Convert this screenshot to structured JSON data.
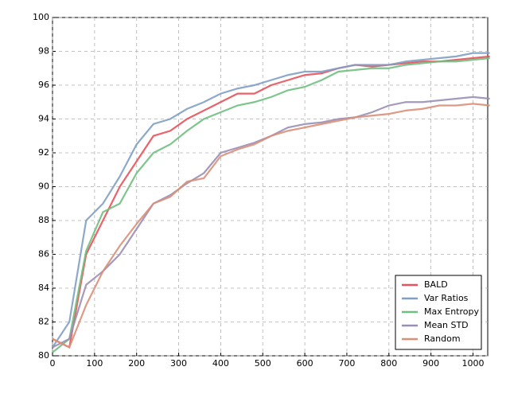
{
  "chart_data": {
    "type": "line",
    "x": [
      0,
      40,
      80,
      120,
      160,
      200,
      240,
      280,
      320,
      360,
      400,
      440,
      480,
      520,
      560,
      600,
      640,
      680,
      720,
      760,
      800,
      840,
      880,
      920,
      960,
      1000,
      1040
    ],
    "series": [
      {
        "name": "BALD",
        "color": "#e8525a",
        "values": [
          81,
          80.5,
          86,
          88,
          90,
          91.5,
          93,
          93.3,
          94,
          94.5,
          95,
          95.5,
          95.5,
          96,
          96.3,
          96.6,
          96.7,
          97,
          97.2,
          97.1,
          97.2,
          97.3,
          97.4,
          97.4,
          97.5,
          97.6,
          97.7
        ]
      },
      {
        "name": "Var Ratios",
        "color": "#7f9fc4",
        "values": [
          80.5,
          82,
          88,
          89,
          90.6,
          92.5,
          93.7,
          94,
          94.6,
          95,
          95.5,
          95.8,
          96,
          96.3,
          96.6,
          96.8,
          96.8,
          97,
          97.2,
          97.2,
          97.2,
          97.4,
          97.5,
          97.6,
          97.7,
          97.9,
          97.9
        ]
      },
      {
        "name": "Max Entropy",
        "color": "#6fbf7f",
        "values": [
          80.2,
          81,
          86.2,
          88.5,
          89,
          90.8,
          92,
          92.5,
          93.3,
          94,
          94.4,
          94.8,
          95,
          95.3,
          95.7,
          95.9,
          96.3,
          96.8,
          96.9,
          97,
          97,
          97.2,
          97.3,
          97.4,
          97.4,
          97.5,
          97.6
        ]
      },
      {
        "name": "Mean STD",
        "color": "#9b8eb5",
        "values": [
          80.5,
          81,
          84.2,
          85,
          86,
          87.5,
          89,
          89.5,
          90.2,
          90.8,
          92,
          92.3,
          92.6,
          93,
          93.5,
          93.7,
          93.8,
          94,
          94.1,
          94.4,
          94.8,
          95,
          95,
          95.1,
          95.2,
          95.3,
          95.2
        ]
      },
      {
        "name": "Random",
        "color": "#d98f78",
        "values": [
          81,
          80.5,
          83,
          85,
          86.5,
          87.8,
          89,
          89.4,
          90.3,
          90.5,
          91.8,
          92.2,
          92.5,
          93,
          93.3,
          93.5,
          93.7,
          93.9,
          94.1,
          94.2,
          94.3,
          94.5,
          94.6,
          94.8,
          94.8,
          94.9,
          94.8
        ]
      }
    ],
    "xlim": [
      0,
      1035
    ],
    "xticks": [
      0,
      100,
      200,
      300,
      400,
      500,
      600,
      700,
      800,
      900,
      1000
    ],
    "ylim": [
      80,
      100
    ],
    "yticks": [
      80,
      82,
      84,
      86,
      88,
      90,
      92,
      94,
      96,
      98,
      100
    ],
    "grid": true,
    "legend": "lower right"
  }
}
